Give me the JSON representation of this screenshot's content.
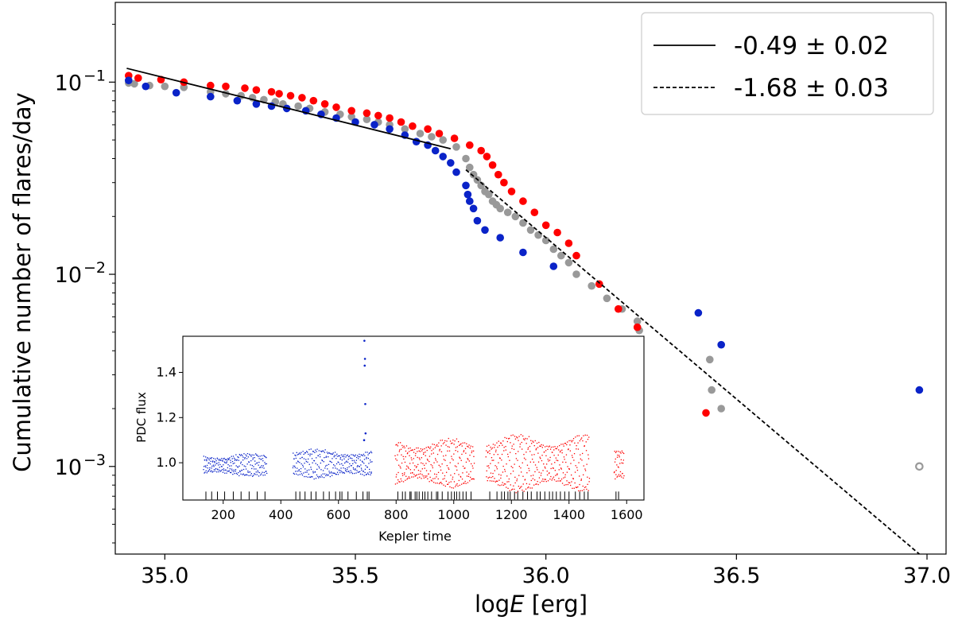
{
  "chart_data": [
    {
      "type": "scatter",
      "name": "main",
      "ylabel": "Cumulative number of flares/day",
      "xlabel_prefix": "log",
      "xlabel_var": "E",
      "xlabel_unit": " [erg]",
      "xscale": "linear",
      "yscale": "log",
      "xlim": [
        34.87,
        37.05
      ],
      "ylim": [
        0.00035,
        0.26
      ],
      "xticks": [
        35.0,
        35.5,
        36.0,
        36.5,
        37.0
      ],
      "xtick_labels": [
        "35.0",
        "35.5",
        "36.0",
        "36.5",
        "37.0"
      ],
      "yticks": [
        0.1,
        0.01,
        0.001
      ],
      "ytick_bases": [
        "10",
        "10",
        "10"
      ],
      "ytick_exps": [
        "−1",
        "−2",
        "−3"
      ],
      "colors": {
        "red": "#ff0000",
        "blue": "#0a23c8",
        "gray": "#999999",
        "fit": "#000000"
      },
      "series": [
        {
          "name": "gray (all flares)",
          "color": "#999999",
          "points": [
            [
              34.905,
              0.099
            ],
            [
              34.92,
              0.098
            ],
            [
              34.96,
              0.096
            ],
            [
              35.0,
              0.095
            ],
            [
              35.05,
              0.094
            ],
            [
              35.12,
              0.089
            ],
            [
              35.16,
              0.087
            ],
            [
              35.2,
              0.085
            ],
            [
              35.23,
              0.083
            ],
            [
              35.26,
              0.081
            ],
            [
              35.29,
              0.079
            ],
            [
              35.31,
              0.077
            ],
            [
              35.35,
              0.075
            ],
            [
              35.38,
              0.073
            ],
            [
              35.42,
              0.07
            ],
            [
              35.46,
              0.068
            ],
            [
              35.49,
              0.066
            ],
            [
              35.53,
              0.064
            ],
            [
              35.56,
              0.062
            ],
            [
              35.59,
              0.06
            ],
            [
              35.63,
              0.057
            ],
            [
              35.67,
              0.054
            ],
            [
              35.7,
              0.052
            ],
            [
              35.73,
              0.05
            ],
            [
              35.765,
              0.046
            ],
            [
              35.79,
              0.04
            ],
            [
              35.8,
              0.036
            ],
            [
              35.81,
              0.033
            ],
            [
              35.82,
              0.031
            ],
            [
              35.83,
              0.029
            ],
            [
              35.84,
              0.027
            ],
            [
              35.85,
              0.026
            ],
            [
              35.86,
              0.024
            ],
            [
              35.87,
              0.023
            ],
            [
              35.88,
              0.022
            ],
            [
              35.9,
              0.021
            ],
            [
              35.92,
              0.02
            ],
            [
              35.94,
              0.0185
            ],
            [
              35.96,
              0.017
            ],
            [
              35.98,
              0.016
            ],
            [
              36.0,
              0.015
            ],
            [
              36.02,
              0.0135
            ],
            [
              36.04,
              0.0125
            ],
            [
              36.06,
              0.0115
            ],
            [
              36.08,
              0.01
            ],
            [
              36.12,
              0.0087
            ],
            [
              36.16,
              0.0075
            ],
            [
              36.2,
              0.0066
            ],
            [
              36.24,
              0.0057
            ],
            [
              36.245,
              0.0051
            ],
            [
              36.43,
              0.0036
            ],
            [
              36.435,
              0.0025
            ],
            [
              36.46,
              0.002
            ]
          ],
          "open_points": [
            [
              36.98,
              0.001
            ]
          ]
        },
        {
          "name": "red (second half)",
          "color": "#ff0000",
          "points": [
            [
              34.905,
              0.108
            ],
            [
              34.93,
              0.105
            ],
            [
              34.99,
              0.103
            ],
            [
              35.05,
              0.1
            ],
            [
              35.12,
              0.096
            ],
            [
              35.16,
              0.095
            ],
            [
              35.21,
              0.093
            ],
            [
              35.24,
              0.091
            ],
            [
              35.28,
              0.089
            ],
            [
              35.3,
              0.087
            ],
            [
              35.33,
              0.085
            ],
            [
              35.36,
              0.083
            ],
            [
              35.39,
              0.08
            ],
            [
              35.42,
              0.077
            ],
            [
              35.45,
              0.074
            ],
            [
              35.49,
              0.071
            ],
            [
              35.53,
              0.069
            ],
            [
              35.56,
              0.067
            ],
            [
              35.59,
              0.065
            ],
            [
              35.62,
              0.062
            ],
            [
              35.65,
              0.059
            ],
            [
              35.69,
              0.057
            ],
            [
              35.72,
              0.054
            ],
            [
              35.76,
              0.051
            ],
            [
              35.8,
              0.047
            ],
            [
              35.83,
              0.044
            ],
            [
              35.845,
              0.041
            ],
            [
              35.86,
              0.037
            ],
            [
              35.875,
              0.033
            ],
            [
              35.89,
              0.03
            ],
            [
              35.91,
              0.027
            ],
            [
              35.94,
              0.024
            ],
            [
              35.97,
              0.021
            ],
            [
              36.0,
              0.018
            ],
            [
              36.03,
              0.0165
            ],
            [
              36.06,
              0.0145
            ],
            [
              36.08,
              0.0125
            ],
            [
              36.14,
              0.0089
            ],
            [
              36.19,
              0.0066
            ],
            [
              36.24,
              0.0053
            ],
            [
              36.42,
              0.0019
            ]
          ]
        },
        {
          "name": "blue (first half)",
          "color": "#0a23c8",
          "points": [
            [
              34.905,
              0.102
            ],
            [
              34.95,
              0.095
            ],
            [
              35.03,
              0.088
            ],
            [
              35.12,
              0.084
            ],
            [
              35.19,
              0.08
            ],
            [
              35.24,
              0.077
            ],
            [
              35.28,
              0.075
            ],
            [
              35.32,
              0.073
            ],
            [
              35.37,
              0.071
            ],
            [
              35.41,
              0.068
            ],
            [
              35.45,
              0.065
            ],
            [
              35.5,
              0.062
            ],
            [
              35.55,
              0.06
            ],
            [
              35.59,
              0.057
            ],
            [
              35.63,
              0.053
            ],
            [
              35.66,
              0.049
            ],
            [
              35.69,
              0.047
            ],
            [
              35.71,
              0.044
            ],
            [
              35.73,
              0.041
            ],
            [
              35.75,
              0.038
            ],
            [
              35.765,
              0.034
            ],
            [
              35.79,
              0.029
            ],
            [
              35.795,
              0.026
            ],
            [
              35.8,
              0.024
            ],
            [
              35.81,
              0.022
            ],
            [
              35.82,
              0.019
            ],
            [
              35.84,
              0.017
            ],
            [
              35.88,
              0.0155
            ],
            [
              35.94,
              0.013
            ],
            [
              36.02,
              0.011
            ],
            [
              36.4,
              0.0063
            ],
            [
              36.46,
              0.0043
            ],
            [
              36.98,
              0.0025
            ]
          ]
        }
      ],
      "fits": [
        {
          "label": "-0.49 ± 0.02",
          "style": "solid",
          "x": [
            34.9,
            35.75
          ],
          "y": [
            0.118,
            0.045
          ]
        },
        {
          "label": "-1.68 ± 0.03",
          "style": "dashed",
          "x": [
            35.79,
            36.98
          ],
          "y": [
            0.035,
            0.00035
          ]
        }
      ],
      "legend": {
        "position": "top-right"
      }
    },
    {
      "type": "scatter",
      "name": "inset",
      "xlabel": "Kepler time",
      "ylabel": "PDC flux",
      "xlim": [
        60,
        1660
      ],
      "ylim": [
        0.835,
        1.56
      ],
      "xticks": [
        200,
        400,
        600,
        800,
        1000,
        1200,
        1400,
        1600
      ],
      "xtick_labels": [
        "200",
        "400",
        "600",
        "800",
        "1000",
        "1200",
        "1400",
        "1600"
      ],
      "yticks": [
        1.0,
        1.2,
        1.4
      ],
      "ytick_labels": [
        "1.0",
        "1.2",
        "1.4"
      ],
      "segments": [
        {
          "start": 130,
          "end": 350,
          "mean": 0.992,
          "amp": 0.038,
          "color": "#0a23c8"
        },
        {
          "start": 440,
          "end": 715,
          "mean": 0.997,
          "amp": 0.05,
          "color": "#0a23c8"
        },
        {
          "start": 795,
          "end": 1070,
          "mean": 1.0,
          "amp": 0.085,
          "color": "#ff0000"
        },
        {
          "start": 1110,
          "end": 1470,
          "mean": 1.0,
          "amp": 0.1,
          "color": "#ff0000"
        },
        {
          "start": 1555,
          "end": 1590,
          "mean": 0.995,
          "amp": 0.08,
          "color": "#ff0000"
        }
      ],
      "flare_points": [
        {
          "t": 690,
          "flux": 1.54,
          "color": "#0a23c8"
        },
        {
          "t": 692,
          "flux": 1.46,
          "color": "#0a23c8"
        },
        {
          "t": 691,
          "flux": 1.43,
          "color": "#0a23c8"
        },
        {
          "t": 693,
          "flux": 1.26,
          "color": "#0a23c8"
        },
        {
          "t": 694,
          "flux": 1.13,
          "color": "#0a23c8"
        },
        {
          "t": 689,
          "flux": 1.1,
          "color": "#0a23c8"
        }
      ],
      "flare_times": [
        140,
        160,
        180,
        205,
        235,
        262,
        290,
        318,
        345,
        452,
        466,
        484,
        505,
        522,
        548,
        568,
        590,
        605,
        612,
        633,
        662,
        685,
        700,
        706,
        806,
        822,
        832,
        848,
        852,
        866,
        872,
        880,
        892,
        900,
        910,
        923,
        940,
        945,
        960,
        980,
        992,
        1002,
        1010,
        1020,
        1032,
        1043,
        1060,
        1125,
        1150,
        1166,
        1176,
        1188,
        1196,
        1211,
        1222,
        1240,
        1256,
        1269,
        1289,
        1300,
        1316,
        1332,
        1343,
        1356,
        1370,
        1385,
        1400,
        1422,
        1437,
        1453,
        1466,
        1563,
        1572
      ]
    }
  ]
}
